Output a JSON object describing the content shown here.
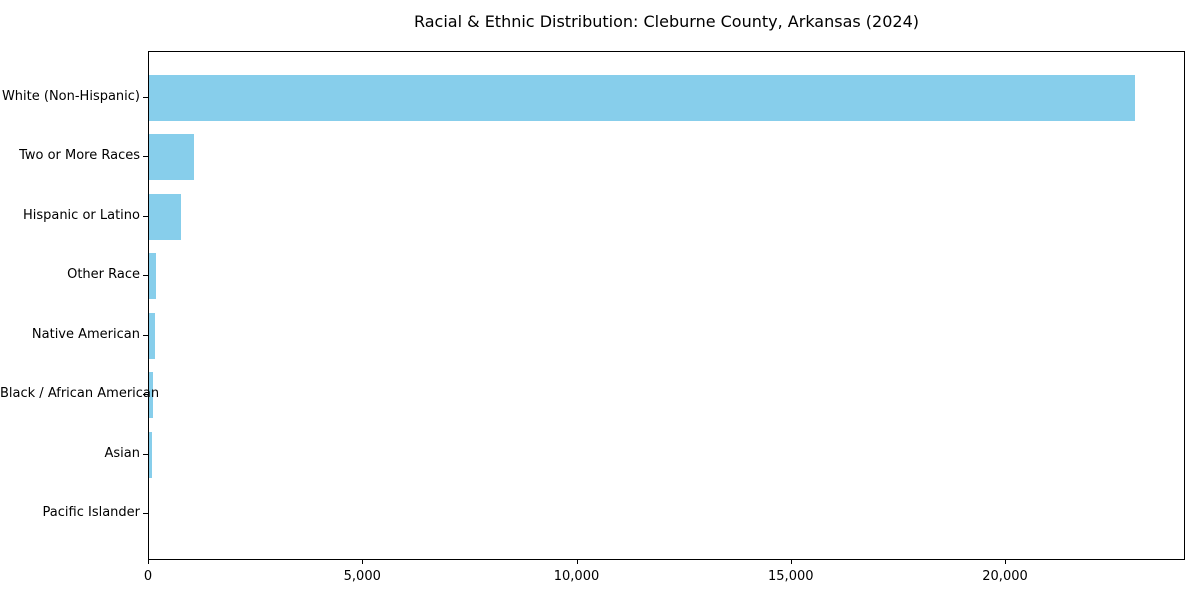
{
  "chart_data": {
    "type": "bar",
    "orientation": "horizontal",
    "title": "Racial & Ethnic Distribution: Cleburne County, Arkansas (2024)",
    "categories": [
      "White (Non-Hispanic)",
      "Two or More Races",
      "Hispanic or Latino",
      "Other Race",
      "Native American",
      "Black / African American",
      "Asian",
      "Pacific Islander"
    ],
    "values": [
      23000,
      1050,
      750,
      160,
      130,
      105,
      80,
      0
    ],
    "bar_color": "#87CEEB",
    "xlabel": "",
    "ylabel": "",
    "xlim": [
      0,
      24200
    ],
    "x_ticks": [
      0,
      5000,
      10000,
      15000,
      20000
    ],
    "x_tick_labels": [
      "0",
      "5,000",
      "10,000",
      "15,000",
      "20,000"
    ],
    "grid": false,
    "legend": null,
    "background_color": "#ffffff",
    "spine_color": "#000000"
  }
}
